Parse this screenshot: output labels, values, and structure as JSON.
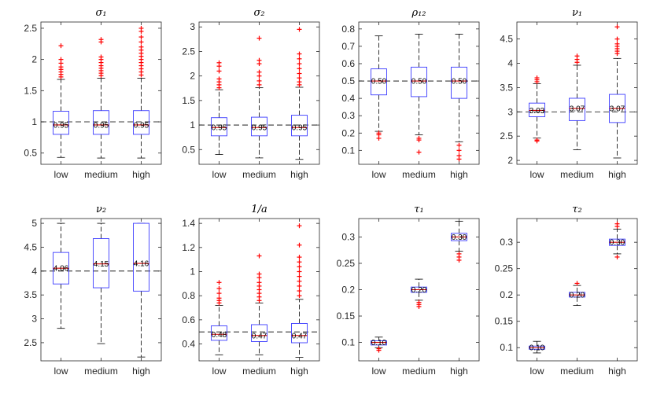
{
  "colors": {
    "box": "#3b3bff",
    "median": "#d40000",
    "outlier": "#ff0000",
    "whisker": "#000000",
    "ref": "#000000",
    "axis": "#262626"
  },
  "chart_data": [
    {
      "type": "box",
      "title": "σ₁",
      "categories": [
        "low",
        "medium",
        "high"
      ],
      "ylim": [
        0.32,
        2.6
      ],
      "yticks": [
        0.5,
        1,
        1.5,
        2,
        2.5
      ],
      "ytick_labels": [
        "0.5",
        "1",
        "1.5",
        "2",
        "2.5"
      ],
      "ref": 1.0,
      "series": [
        {
          "name": "low",
          "q1": 0.8,
          "median": 0.95,
          "q3": 1.17,
          "wlo": 0.43,
          "whi": 1.68,
          "median_label": "0.95",
          "outliers": [
            1.72,
            1.76,
            1.8,
            1.84,
            1.88,
            1.94,
            2.0,
            2.22
          ]
        },
        {
          "name": "medium",
          "q1": 0.8,
          "median": 0.95,
          "q3": 1.18,
          "wlo": 0.42,
          "whi": 1.7,
          "median_label": "0.95",
          "outliers": [
            1.74,
            1.78,
            1.82,
            1.86,
            1.9,
            1.95,
            2.0,
            2.04,
            2.28,
            2.32
          ]
        },
        {
          "name": "high",
          "q1": 0.8,
          "median": 0.95,
          "q3": 1.18,
          "wlo": 0.42,
          "whi": 1.7,
          "median_label": "0.95",
          "outliers": [
            1.75,
            1.8,
            1.85,
            1.9,
            1.95,
            2.0,
            2.05,
            2.1,
            2.15,
            2.2,
            2.28,
            2.36,
            2.45,
            2.5
          ]
        }
      ]
    },
    {
      "type": "box",
      "title": "σ₂",
      "categories": [
        "low",
        "medium",
        "high"
      ],
      "ylim": [
        0.2,
        3.1
      ],
      "yticks": [
        0.5,
        1,
        1.5,
        2,
        2.5,
        3
      ],
      "ytick_labels": [
        "0.5",
        "1",
        "1.5",
        "2",
        "2.5",
        "3"
      ],
      "ref": 1.0,
      "series": [
        {
          "name": "low",
          "q1": 0.78,
          "median": 0.95,
          "q3": 1.15,
          "wlo": 0.4,
          "whi": 1.72,
          "median_label": "0.95",
          "outliers": [
            1.76,
            1.82,
            1.88,
            1.94,
            2.1,
            2.2,
            2.27
          ]
        },
        {
          "name": "medium",
          "q1": 0.78,
          "median": 0.95,
          "q3": 1.16,
          "wlo": 0.33,
          "whi": 1.76,
          "median_label": "0.95",
          "outliers": [
            1.82,
            1.9,
            2.0,
            2.08,
            2.25,
            2.32,
            2.77
          ]
        },
        {
          "name": "high",
          "q1": 0.78,
          "median": 0.95,
          "q3": 1.2,
          "wlo": 0.3,
          "whi": 1.77,
          "median_label": "0.95",
          "outliers": [
            1.82,
            1.88,
            1.96,
            2.05,
            2.15,
            2.25,
            2.35,
            2.45,
            2.95
          ]
        }
      ]
    },
    {
      "type": "box",
      "title": "ρ₁₂",
      "categories": [
        "low",
        "medium",
        "high"
      ],
      "ylim": [
        0.02,
        0.84
      ],
      "yticks": [
        0.1,
        0.2,
        0.3,
        0.4,
        0.5,
        0.6,
        0.7,
        0.8
      ],
      "ytick_labels": [
        "0.1",
        "0.2",
        "0.3",
        "0.4",
        "0.5",
        "0.6",
        "0.7",
        "0.8"
      ],
      "ref": 0.5,
      "series": [
        {
          "name": "low",
          "q1": 0.42,
          "median": 0.5,
          "q3": 0.57,
          "wlo": 0.21,
          "whi": 0.76,
          "median_label": "0.50",
          "outliers": [
            0.17,
            0.19,
            0.2
          ]
        },
        {
          "name": "medium",
          "q1": 0.41,
          "median": 0.5,
          "q3": 0.58,
          "wlo": 0.19,
          "whi": 0.77,
          "median_label": "0.50",
          "outliers": [
            0.16,
            0.17,
            0.09
          ]
        },
        {
          "name": "high",
          "q1": 0.4,
          "median": 0.5,
          "q3": 0.58,
          "wlo": 0.15,
          "whi": 0.77,
          "median_label": "0.50",
          "outliers": [
            0.13,
            0.1,
            0.07,
            0.05
          ]
        }
      ]
    },
    {
      "type": "box",
      "title": "ν₁",
      "categories": [
        "low",
        "medium",
        "high"
      ],
      "ylim": [
        1.92,
        4.85
      ],
      "yticks": [
        2,
        2.5,
        3,
        3.5,
        4,
        4.5
      ],
      "ytick_labels": [
        "2",
        "2.5",
        "3",
        "3.5",
        "4",
        "4.5"
      ],
      "ref": 3.0,
      "series": [
        {
          "name": "low",
          "q1": 2.9,
          "median": 3.03,
          "q3": 3.18,
          "wlo": 2.46,
          "whi": 3.58,
          "median_label": "3.03",
          "outliers": [
            3.62,
            3.66,
            3.7,
            2.42,
            2.4
          ]
        },
        {
          "name": "medium",
          "q1": 2.82,
          "median": 3.07,
          "q3": 3.28,
          "wlo": 2.22,
          "whi": 3.96,
          "median_label": "3.07",
          "outliers": [
            4.02,
            4.08,
            4.15
          ]
        },
        {
          "name": "high",
          "q1": 2.78,
          "median": 3.07,
          "q3": 3.36,
          "wlo": 2.05,
          "whi": 4.1,
          "median_label": "3.07",
          "outliers": [
            4.2,
            4.25,
            4.3,
            4.35,
            4.4,
            4.5,
            4.75
          ]
        }
      ]
    },
    {
      "type": "box",
      "title": "ν₂",
      "categories": [
        "low",
        "medium",
        "high"
      ],
      "ylim": [
        2.12,
        5.1
      ],
      "yticks": [
        2.5,
        3,
        3.5,
        4,
        4.5,
        5
      ],
      "ytick_labels": [
        "2.5",
        "3",
        "3.5",
        "4",
        "4.5",
        "5"
      ],
      "ref": 4.0,
      "series": [
        {
          "name": "low",
          "q1": 3.73,
          "median": 4.06,
          "q3": 4.39,
          "wlo": 2.8,
          "whi": 5.0,
          "median_label": "4.06",
          "outliers": []
        },
        {
          "name": "medium",
          "q1": 3.65,
          "median": 4.15,
          "q3": 4.68,
          "wlo": 2.48,
          "whi": 5.0,
          "median_label": "4.15",
          "outliers": []
        },
        {
          "name": "high",
          "q1": 3.58,
          "median": 4.16,
          "q3": 5.0,
          "wlo": 2.2,
          "whi": 5.0,
          "median_label": "4.16",
          "outliers": []
        }
      ]
    },
    {
      "type": "box",
      "title": "1/a",
      "categories": [
        "low",
        "medium",
        "high"
      ],
      "ylim": [
        0.26,
        1.44
      ],
      "yticks": [
        0.4,
        0.6,
        0.8,
        1,
        1.2,
        1.4
      ],
      "ytick_labels": [
        "0.4",
        "0.6",
        "0.8",
        "1",
        "1.2",
        "1.4"
      ],
      "ref": 0.5,
      "series": [
        {
          "name": "low",
          "q1": 0.43,
          "median": 0.48,
          "q3": 0.55,
          "wlo": 0.31,
          "whi": 0.72,
          "median_label": "0.48",
          "outliers": [
            0.74,
            0.76,
            0.78,
            0.82,
            0.86,
            0.91
          ]
        },
        {
          "name": "medium",
          "q1": 0.42,
          "median": 0.47,
          "q3": 0.56,
          "wlo": 0.31,
          "whi": 0.74,
          "median_label": "0.47",
          "outliers": [
            0.76,
            0.79,
            0.82,
            0.85,
            0.88,
            0.91,
            0.95,
            0.98,
            1.13
          ]
        },
        {
          "name": "high",
          "q1": 0.41,
          "median": 0.47,
          "q3": 0.57,
          "wlo": 0.29,
          "whi": 0.77,
          "median_label": "0.47",
          "outliers": [
            0.8,
            0.84,
            0.88,
            0.92,
            0.96,
            1.0,
            1.04,
            1.08,
            1.12,
            1.22,
            1.38
          ]
        }
      ]
    },
    {
      "type": "box",
      "title": "τ₁",
      "categories": [
        "low",
        "medium",
        "high"
      ],
      "ylim": [
        0.065,
        0.335
      ],
      "yticks": [
        0.1,
        0.15,
        0.2,
        0.25,
        0.3
      ],
      "ytick_labels": [
        "0.1",
        "0.15",
        "0.2",
        "0.25",
        "0.3"
      ],
      "ref": null,
      "series": [
        {
          "name": "low",
          "q1": 0.095,
          "median": 0.1,
          "q3": 0.103,
          "wlo": 0.09,
          "whi": 0.11,
          "median_label": "0.10",
          "outliers": [
            0.088,
            0.085
          ]
        },
        {
          "name": "medium",
          "q1": 0.195,
          "median": 0.2,
          "q3": 0.205,
          "wlo": 0.18,
          "whi": 0.22,
          "median_label": "0.20",
          "outliers": [
            0.176,
            0.172,
            0.168
          ]
        },
        {
          "name": "high",
          "q1": 0.293,
          "median": 0.3,
          "q3": 0.307,
          "wlo": 0.273,
          "whi": 0.33,
          "median_label": "0.30",
          "outliers": [
            0.268,
            0.262,
            0.256
          ]
        }
      ]
    },
    {
      "type": "box",
      "title": "τ₂",
      "categories": [
        "low",
        "medium",
        "high"
      ],
      "ylim": [
        0.075,
        0.345
      ],
      "yticks": [
        0.1,
        0.15,
        0.2,
        0.25,
        0.3
      ],
      "ytick_labels": [
        "0.1",
        "0.15",
        "0.2",
        "0.25",
        "0.3"
      ],
      "ref": null,
      "series": [
        {
          "name": "low",
          "q1": 0.097,
          "median": 0.1,
          "q3": 0.103,
          "wlo": 0.09,
          "whi": 0.112,
          "median_label": "0.10",
          "outliers": []
        },
        {
          "name": "medium",
          "q1": 0.196,
          "median": 0.2,
          "q3": 0.205,
          "wlo": 0.18,
          "whi": 0.218,
          "median_label": "0.20",
          "outliers": [
            0.222
          ]
        },
        {
          "name": "high",
          "q1": 0.294,
          "median": 0.3,
          "q3": 0.306,
          "wlo": 0.278,
          "whi": 0.325,
          "median_label": "0.30",
          "outliers": [
            0.272,
            0.33,
            0.335
          ]
        }
      ]
    }
  ]
}
